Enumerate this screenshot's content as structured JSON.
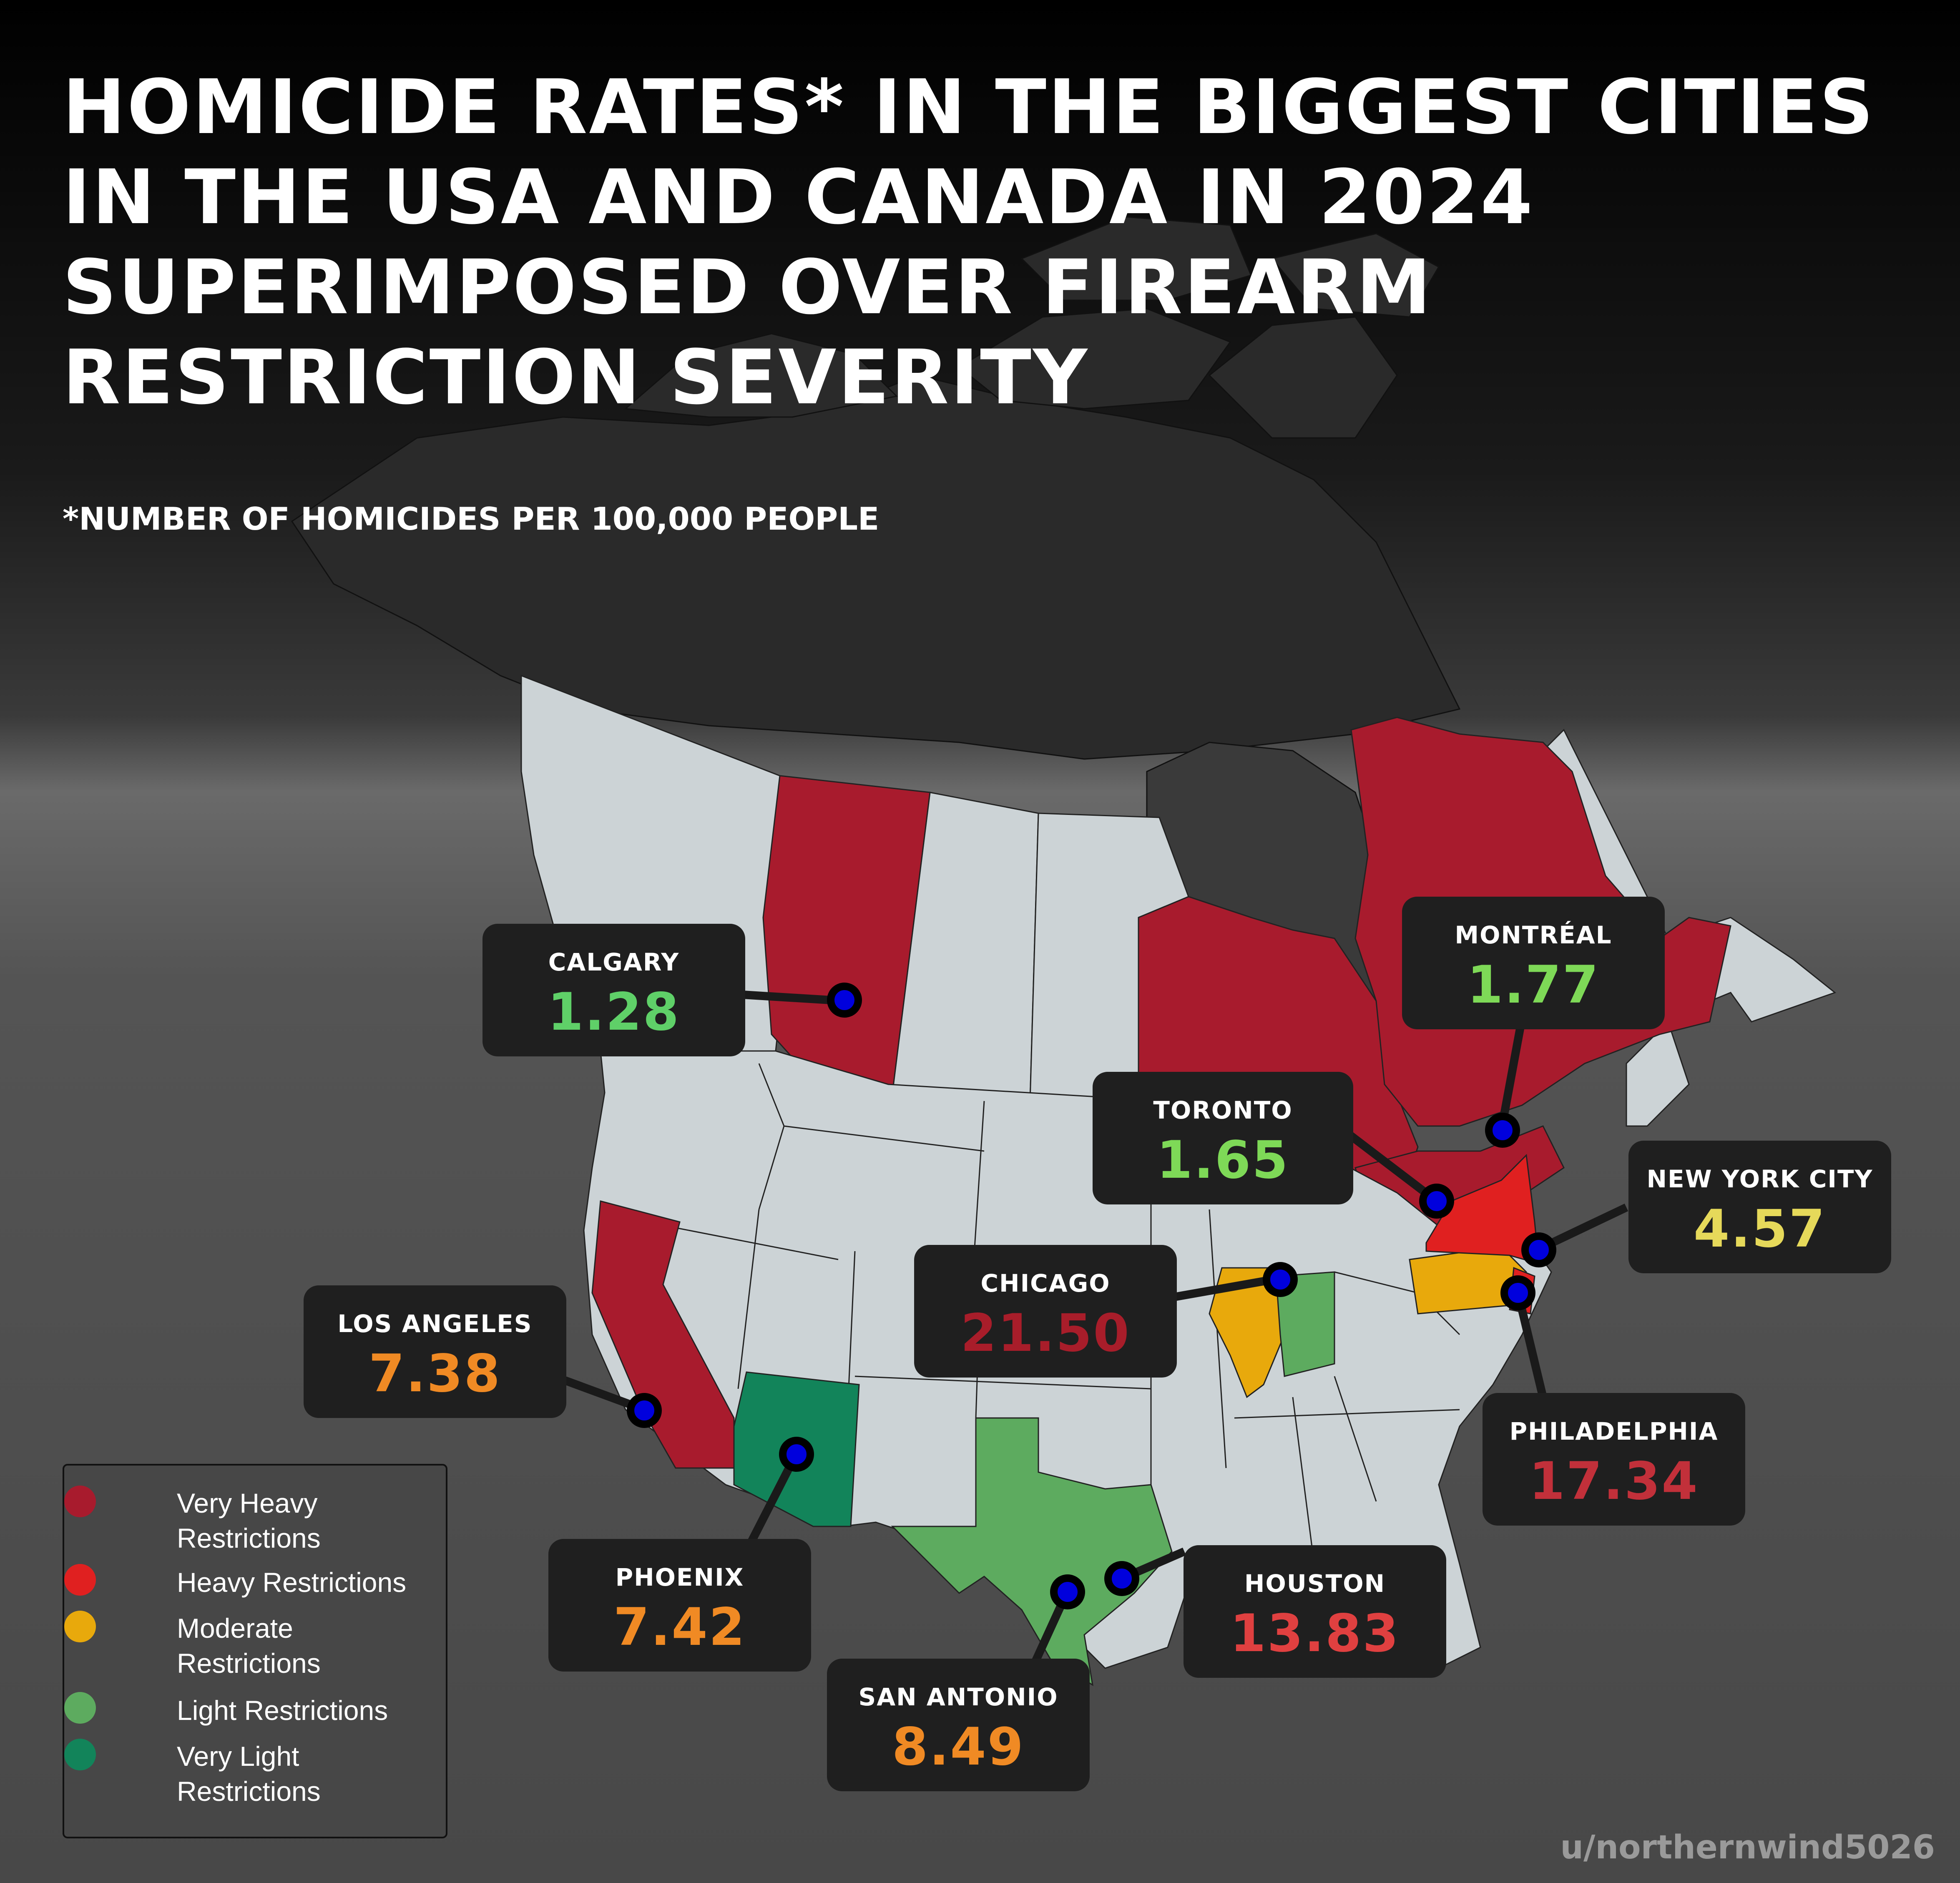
{
  "title_lines": [
    "HOMICIDE RATES* IN THE BIGGEST CITIES",
    "IN THE USA AND CANADA IN 2024",
    "SUPERIMPOSED OVER FIREARM",
    "RESTRICTION SEVERITY"
  ],
  "subtitle": "*NUMBER OF HOMICIDES PER 100,000 PEOPLE",
  "cities": [
    {
      "name": "CALGARY",
      "rate": "1.28",
      "color": "#5fd068"
    },
    {
      "name": "MONTRÉAL",
      "rate": "1.77",
      "color": "#7ed957"
    },
    {
      "name": "TORONTO",
      "rate": "1.65",
      "color": "#7ed957"
    },
    {
      "name": "NEW YORK CITY",
      "rate": "4.57",
      "color": "#e6d95a"
    },
    {
      "name": "CHICAGO",
      "rate": "21.50",
      "color": "#a81d2a"
    },
    {
      "name": "LOS ANGELES",
      "rate": "7.38",
      "color": "#f08a24"
    },
    {
      "name": "PHILADELPHIA",
      "rate": "17.34",
      "color": "#c2303a"
    },
    {
      "name": "PHOENIX",
      "rate": "7.42",
      "color": "#f08a24"
    },
    {
      "name": "HOUSTON",
      "rate": "13.83",
      "color": "#e04040"
    },
    {
      "name": "SAN ANTONIO",
      "rate": "8.49",
      "color": "#f08a24"
    }
  ],
  "legend": [
    {
      "label": "Very Heavy Restrictions",
      "color": "#a81b2d"
    },
    {
      "label": "Heavy Restrictions",
      "color": "#e02020"
    },
    {
      "label": "Moderate Restrictions",
      "color": "#e8a90c"
    },
    {
      "label": "Light Restrictions",
      "color": "#5dab5f"
    },
    {
      "label": "Very Light Restrictions",
      "color": "#12845a"
    }
  ],
  "credit": "u/northernwind5026"
}
